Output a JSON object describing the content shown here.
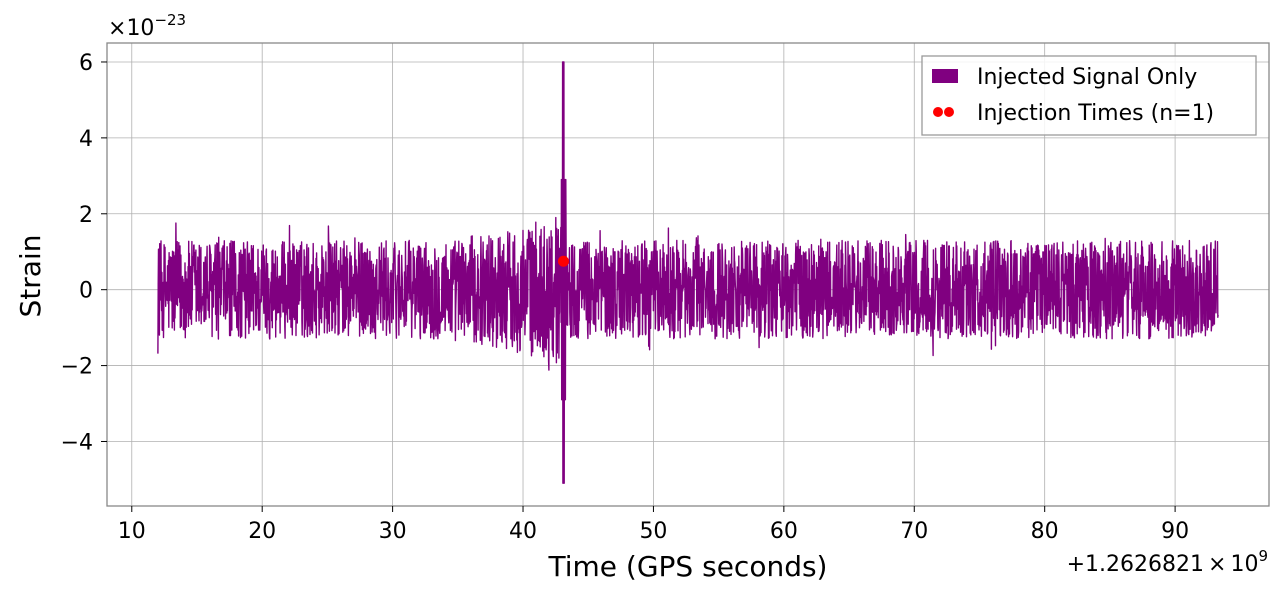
{
  "chart_data": {
    "type": "line",
    "title": "",
    "xlabel": "Time (GPS seconds)",
    "ylabel": "Strain",
    "x_offset_label": {
      "prefix": "+1.2626821",
      "times": "×",
      "base": "10",
      "exp": "9"
    },
    "y_scale_label": {
      "times": "×",
      "base": "10",
      "exp": "−23"
    },
    "xlim": [
      8.1,
      97.2
    ],
    "ylim": [
      -5.7,
      6.5
    ],
    "x_ticks": [
      10,
      20,
      30,
      40,
      50,
      60,
      70,
      80,
      90
    ],
    "x_tick_labels": [
      "10",
      "20",
      "30",
      "40",
      "50",
      "60",
      "70",
      "80",
      "90"
    ],
    "y_ticks": [
      -4,
      -2,
      0,
      2,
      4,
      6
    ],
    "y_tick_labels": [
      "−4",
      "−2",
      "0",
      "2",
      "4",
      "6"
    ],
    "grid": true,
    "legend_position": "top-right",
    "series": [
      {
        "name": "Injected Signal Only",
        "kind": "line",
        "color": "#800080",
        "x_range": [
          12.0,
          93.3
        ],
        "typical_envelope": [
          -1.3,
          1.3
        ],
        "peak_max": 6.0,
        "peak_min": -5.1,
        "peak_x": 43.1
      },
      {
        "name": "Injection Times (n=1)",
        "kind": "scatter",
        "color": "#ff0000",
        "points": [
          {
            "x": 43.1,
            "y": 0.75
          }
        ]
      }
    ]
  }
}
